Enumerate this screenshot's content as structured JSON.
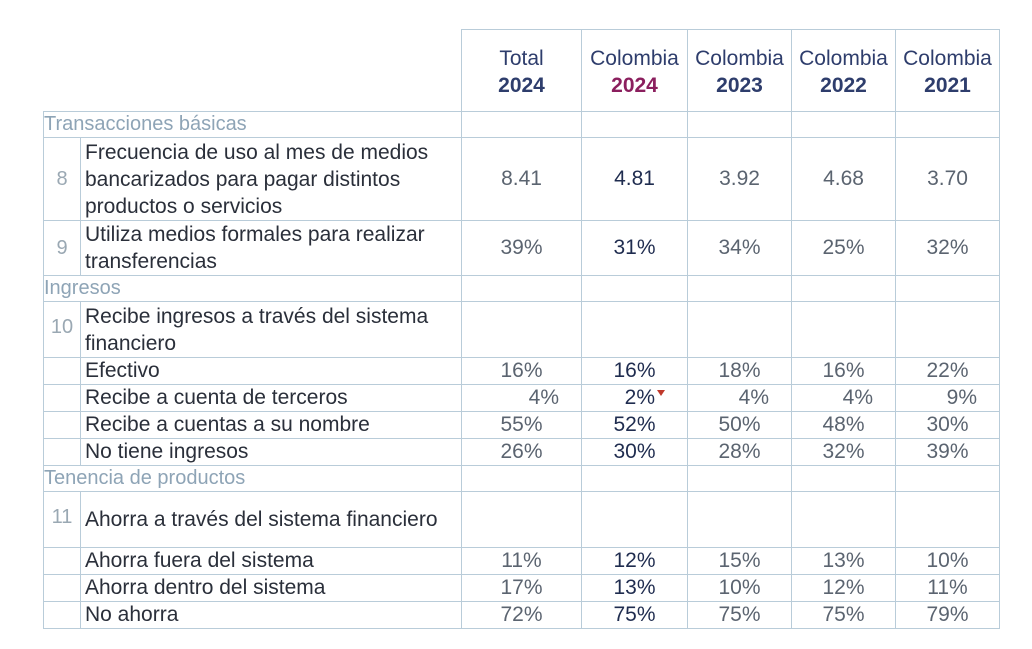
{
  "columns": [
    {
      "label": "Total",
      "year": "2024"
    },
    {
      "label": "Colombia",
      "year": "2024"
    },
    {
      "label": "Colombia",
      "year": "2023"
    },
    {
      "label": "Colombia",
      "year": "2022"
    },
    {
      "label": "Colombia",
      "year": "2021"
    }
  ],
  "accent_color": "#8b1f5e",
  "sections": {
    "s1": "Transacciones básicas",
    "s2": "Ingresos",
    "s3": "Tenencia de productos"
  },
  "rows": {
    "r8": {
      "num": "8",
      "label": "Frecuencia de uso al mes de medios bancarizados para pagar distintos productos o servicios",
      "values": [
        "8.41",
        "4.81",
        "3.92",
        "4.68",
        "3.70"
      ]
    },
    "r9": {
      "num": "9",
      "label": "Utiliza medios formales para realizar transferencias",
      "values": [
        "39%",
        "31%",
        "34%",
        "25%",
        "32%"
      ]
    },
    "r10": {
      "num": "10",
      "label": "Recibe ingresos a través del sistema financiero"
    },
    "r10a": {
      "label": "Efectivo",
      "values": [
        "16%",
        "16%",
        "18%",
        "16%",
        "22%"
      ]
    },
    "r10b": {
      "label": "Recibe a cuenta de terceros",
      "values": [
        "4%",
        "2%",
        "4%",
        "4%",
        "9%"
      ]
    },
    "r10c": {
      "label": "Recibe a cuentas a su nombre",
      "values": [
        "55%",
        "52%",
        "50%",
        "48%",
        "30%"
      ]
    },
    "r10d": {
      "label": "No tiene ingresos",
      "values": [
        "26%",
        "30%",
        "28%",
        "32%",
        "39%"
      ]
    },
    "r11": {
      "num": "11",
      "label": "Ahorra a través del sistema financiero"
    },
    "r11a": {
      "label": "Ahorra fuera del sistema",
      "values": [
        "11%",
        "12%",
        "15%",
        "13%",
        "10%"
      ]
    },
    "r11b": {
      "label": "Ahorra dentro del sistema",
      "values": [
        "17%",
        "13%",
        "10%",
        "12%",
        "11%"
      ]
    },
    "r11c": {
      "label": "No ahorra",
      "values": [
        "72%",
        "75%",
        "75%",
        "75%",
        "79%"
      ]
    }
  },
  "icons": {
    "decrease_marker": "red-down-triangle-icon"
  }
}
